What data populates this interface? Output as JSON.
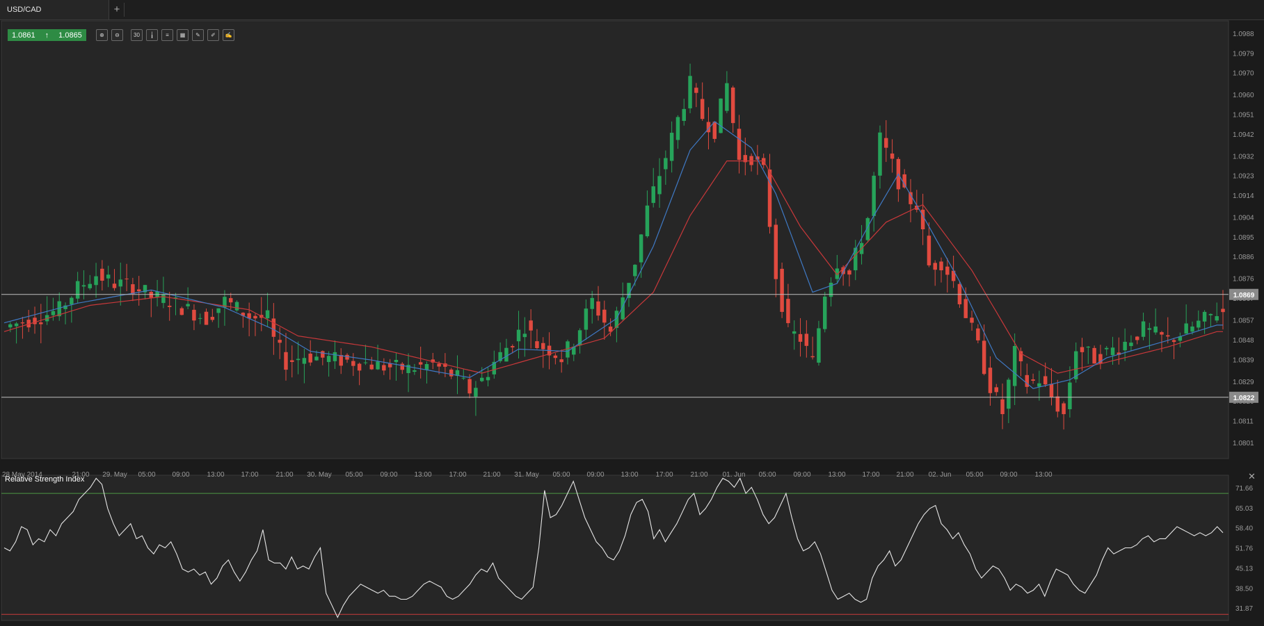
{
  "tab": {
    "symbol": "USD/CAD",
    "add_label": "+"
  },
  "quote": {
    "bid": "1.0861",
    "ask": "1.0865",
    "direction": "up"
  },
  "toolbar": {
    "tools": [
      {
        "icon": "zoom-in-icon",
        "glyph": "⊕"
      },
      {
        "icon": "zoom-out-icon",
        "glyph": "⊖"
      },
      {
        "icon": "timeframe-icon",
        "glyph": "30"
      },
      {
        "icon": "candles-icon",
        "glyph": "╽"
      },
      {
        "icon": "indicators-icon",
        "glyph": "≡"
      },
      {
        "icon": "chart-type-icon",
        "glyph": "▦"
      },
      {
        "icon": "settings-icon",
        "glyph": "✎"
      },
      {
        "icon": "edit-icon",
        "glyph": "✐"
      },
      {
        "icon": "draw-icon",
        "glyph": "✍"
      }
    ]
  },
  "colors": {
    "up": "#26a35a",
    "down": "#e04a3f",
    "ma_fast": "#3f79c4",
    "ma_slow": "#c9383a",
    "rsi_line": "#e6e6e6",
    "rsi_upper": "#4e9a45",
    "rsi_lower": "#c93a3a"
  },
  "chart_data": [
    {
      "type": "candlestick",
      "title": "USD/CAD",
      "interval": "30 min",
      "ylim": [
        1.0794,
        1.0994
      ],
      "y_ticks": [
        "1.0988",
        "1.0979",
        "1.0970",
        "1.0960",
        "1.0951",
        "1.0942",
        "1.0932",
        "1.0923",
        "1.0914",
        "1.0904",
        "1.0895",
        "1.0886",
        "1.0876",
        "1.0867",
        "1.0857",
        "1.0848",
        "1.0839",
        "1.0829",
        "1.0820",
        "1.0811",
        "1.0801"
      ],
      "x_ticks": [
        "28 May 2014",
        "21:00",
        "29. May",
        "05:00",
        "09:00",
        "13:00",
        "17:00",
        "21:00",
        "30. May",
        "05:00",
        "09:00",
        "13:00",
        "17:00",
        "21:00",
        "31. May",
        "05:00",
        "09:00",
        "13:00",
        "17:00",
        "21:00",
        "01. Jun",
        "05:00",
        "09:00",
        "13:00",
        "17:00",
        "21:00",
        "02. Jun",
        "05:00",
        "09:00",
        "13:00"
      ],
      "horizontal_lines": [
        {
          "value": 1.0869,
          "label": "1.0869"
        },
        {
          "value": 1.0822,
          "label": "1.0822"
        }
      ],
      "close_path": [
        [
          0,
          1.0854
        ],
        [
          6,
          1.0859
        ],
        [
          9,
          1.0862
        ],
        [
          12,
          1.0872
        ],
        [
          15,
          1.0878
        ],
        [
          18,
          1.0874
        ],
        [
          21,
          1.0873
        ],
        [
          24,
          1.0868
        ],
        [
          27,
          1.0866
        ],
        [
          30,
          1.0862
        ],
        [
          33,
          1.0858
        ],
        [
          36,
          1.0866
        ],
        [
          40,
          1.0859
        ],
        [
          43,
          1.0858
        ],
        [
          44,
          1.0848
        ],
        [
          46,
          1.0838
        ],
        [
          49,
          1.0841
        ],
        [
          52,
          1.084
        ],
        [
          58,
          1.0838
        ],
        [
          62,
          1.0836
        ],
        [
          66,
          1.0835
        ],
        [
          70,
          1.0837
        ],
        [
          74,
          1.0831
        ],
        [
          76,
          1.0825
        ],
        [
          78,
          1.083
        ],
        [
          80,
          1.0838
        ],
        [
          83,
          1.0848
        ],
        [
          85,
          1.0855
        ],
        [
          87,
          1.0846
        ],
        [
          89,
          1.0844
        ],
        [
          91,
          1.084
        ],
        [
          93,
          1.0848
        ],
        [
          96,
          1.0866
        ],
        [
          99,
          1.0852
        ],
        [
          101,
          1.0868
        ],
        [
          103,
          1.0884
        ],
        [
          105,
          1.0908
        ],
        [
          108,
          1.0932
        ],
        [
          110,
          1.0949
        ],
        [
          112,
          1.0965
        ],
        [
          114,
          1.095
        ],
        [
          116,
          1.0944
        ],
        [
          118,
          1.0965
        ],
        [
          120,
          1.093
        ],
        [
          122,
          1.0932
        ],
        [
          124,
          1.0925
        ],
        [
          126,
          1.0878
        ],
        [
          128,
          1.0852
        ],
        [
          130,
          1.0849
        ],
        [
          132,
          1.0838
        ],
        [
          134,
          1.087
        ],
        [
          136,
          1.0884
        ],
        [
          138,
          1.0878
        ],
        [
          141,
          1.0904
        ],
        [
          143,
          1.094
        ],
        [
          145,
          1.0928
        ],
        [
          147,
          1.0914
        ],
        [
          149,
          1.091
        ],
        [
          151,
          1.0882
        ],
        [
          153,
          1.0884
        ],
        [
          155,
          1.0875
        ],
        [
          157,
          1.086
        ],
        [
          159,
          1.0845
        ],
        [
          161,
          1.0827
        ],
        [
          163,
          1.0815
        ],
        [
          165,
          1.0842
        ],
        [
          167,
          1.0828
        ],
        [
          169,
          1.083
        ],
        [
          171,
          1.0822
        ],
        [
          173,
          1.0814
        ],
        [
          175,
          1.0845
        ],
        [
          178,
          1.084
        ],
        [
          182,
          1.0845
        ],
        [
          186,
          1.0853
        ],
        [
          190,
          1.0848
        ],
        [
          194,
          1.0854
        ],
        [
          198,
          1.0861
        ]
      ],
      "ma_fast_path": [
        [
          0,
          1.0856
        ],
        [
          12,
          1.0865
        ],
        [
          24,
          1.0871
        ],
        [
          36,
          1.0863
        ],
        [
          44,
          1.0853
        ],
        [
          50,
          1.0843
        ],
        [
          60,
          1.0839
        ],
        [
          76,
          1.0831
        ],
        [
          84,
          1.0844
        ],
        [
          92,
          1.0843
        ],
        [
          100,
          1.0858
        ],
        [
          106,
          1.0891
        ],
        [
          112,
          1.0935
        ],
        [
          116,
          1.0948
        ],
        [
          122,
          1.0936
        ],
        [
          126,
          1.0915
        ],
        [
          132,
          1.087
        ],
        [
          136,
          1.0874
        ],
        [
          142,
          1.0905
        ],
        [
          146,
          1.0924
        ],
        [
          150,
          1.0905
        ],
        [
          156,
          1.0875
        ],
        [
          162,
          1.084
        ],
        [
          168,
          1.0826
        ],
        [
          174,
          1.083
        ],
        [
          180,
          1.084
        ],
        [
          190,
          1.0848
        ],
        [
          198,
          1.0855
        ]
      ],
      "ma_slow_path": [
        [
          0,
          1.0852
        ],
        [
          14,
          1.0864
        ],
        [
          26,
          1.0868
        ],
        [
          40,
          1.0862
        ],
        [
          48,
          1.085
        ],
        [
          60,
          1.0845
        ],
        [
          78,
          1.0833
        ],
        [
          88,
          1.0841
        ],
        [
          98,
          1.0849
        ],
        [
          106,
          1.087
        ],
        [
          112,
          1.0905
        ],
        [
          118,
          1.093
        ],
        [
          124,
          1.093
        ],
        [
          130,
          1.09
        ],
        [
          136,
          1.0878
        ],
        [
          144,
          1.0902
        ],
        [
          150,
          1.091
        ],
        [
          158,
          1.088
        ],
        [
          166,
          1.0842
        ],
        [
          172,
          1.0833
        ],
        [
          180,
          1.0838
        ],
        [
          190,
          1.0845
        ],
        [
          198,
          1.0852
        ]
      ]
    },
    {
      "type": "line",
      "title": "Relative Strength Index",
      "ylim": [
        28.0,
        76.0
      ],
      "y_ticks": [
        "71.66",
        "65.03",
        "58.40",
        "51.76",
        "45.13",
        "38.50",
        "31.87"
      ],
      "upper_level": 70.0,
      "lower_level": 30.0,
      "values": [
        52,
        51,
        54,
        59,
        58,
        53,
        55,
        54,
        58,
        56,
        60,
        62,
        64,
        68,
        70,
        72,
        75,
        73,
        65,
        60,
        56,
        58,
        60,
        55,
        56,
        52,
        50,
        53,
        52,
        54,
        50,
        45,
        44,
        45,
        43,
        44,
        40,
        42,
        46,
        48,
        44,
        41,
        44,
        48,
        51,
        58,
        48,
        47,
        47,
        45,
        49,
        45,
        46,
        45,
        49,
        52,
        37,
        33,
        29,
        33,
        36,
        38,
        40,
        39,
        38,
        37,
        38,
        36,
        36,
        35,
        35,
        36,
        38,
        40,
        41,
        40,
        39,
        36,
        35,
        36,
        38,
        40,
        43,
        45,
        44,
        47,
        42,
        40,
        38,
        36,
        35,
        37,
        39,
        52,
        71,
        62,
        63,
        66,
        70,
        74,
        68,
        62,
        58,
        54,
        52,
        49,
        48,
        51,
        56,
        63,
        67,
        68,
        64,
        55,
        58,
        54,
        57,
        60,
        64,
        68,
        70,
        63,
        65,
        68,
        72,
        75,
        74,
        72,
        75,
        70,
        72,
        68,
        63,
        60,
        62,
        66,
        70,
        62,
        55,
        51,
        52,
        54,
        50,
        44,
        38,
        35,
        36,
        37,
        35,
        34,
        35,
        42,
        46,
        48,
        51,
        46,
        48,
        52,
        56,
        60,
        63,
        65,
        66,
        60,
        58,
        55,
        57,
        53,
        50,
        45,
        42,
        44,
        46,
        45,
        42,
        38,
        40,
        39,
        37,
        38,
        40,
        36,
        41,
        45,
        44,
        43,
        40,
        38,
        37,
        40,
        43,
        48,
        52,
        50,
        51,
        52,
        52,
        53,
        55,
        56,
        54,
        55,
        55,
        57,
        59,
        58,
        57,
        56,
        57,
        56,
        57,
        59,
        57
      ]
    }
  ]
}
